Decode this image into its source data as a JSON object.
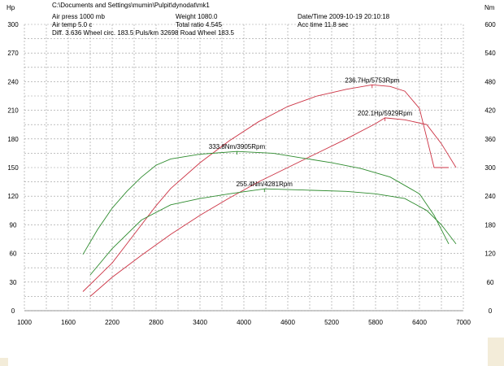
{
  "header": {
    "path": "C:\\Documents and Settings\\mumin\\Pulpit\\dynodat\\mk1",
    "air_press": "Air press  1000 mb",
    "air_temp": "Air temp  5.0 c",
    "diff": "Diff.   3.636  Wheel circ. 183.5  Puls/km  32698  Road Wheel 183.5",
    "weight": "Weight  1080.0",
    "total_ratio": "Total ratio 4.545",
    "date_time": "Date/Time  2009-10-19 20:10:18",
    "acc_time": "Acc time  11.8 sec"
  },
  "chart_data": {
    "type": "line",
    "xlabel": "",
    "left_axis_label": "Hp",
    "right_axis_label": "Nm",
    "xlim": [
      1000,
      7000
    ],
    "ylim_left": [
      0,
      300
    ],
    "ylim_right": [
      0,
      600
    ],
    "x_ticks": [
      "1000",
      "1600",
      "2200",
      "2800",
      "3400",
      "4000",
      "4600",
      "5200",
      "5800",
      "6400",
      "7000"
    ],
    "y_ticks_left": [
      "0",
      "30",
      "60",
      "90",
      "120",
      "150",
      "180",
      "210",
      "240",
      "270",
      "300"
    ],
    "y_ticks_right": [
      "0",
      "60",
      "120",
      "180",
      "240",
      "300",
      "360",
      "420",
      "480",
      "540",
      "600"
    ],
    "grid": true,
    "colors": {
      "power": "#cc3344",
      "torque": "#2e8b2e"
    },
    "series": [
      {
        "label": "236.7Hp/5753Rpm",
        "kind": "power",
        "axis": "left",
        "x": [
          1800,
          2000,
          2200,
          2400,
          2600,
          2800,
          3000,
          3400,
          3800,
          4200,
          4600,
          5000,
          5400,
          5753,
          6000,
          6200,
          6400,
          6600,
          6800
        ],
        "y": [
          20,
          35,
          50,
          70,
          90,
          110,
          128,
          155,
          178,
          198,
          214,
          225,
          232,
          236.7,
          235,
          230,
          212,
          150,
          150
        ],
        "peak_x": 5753,
        "peak_y": 236.7
      },
      {
        "label": "202.1Hp/5929Rpm",
        "kind": "power",
        "axis": "left",
        "x": [
          1900,
          2200,
          2600,
          3000,
          3400,
          3800,
          4200,
          4600,
          5000,
          5400,
          5800,
          5929,
          6200,
          6500,
          6700,
          6900
        ],
        "y": [
          15,
          35,
          58,
          80,
          100,
          118,
          135,
          150,
          165,
          180,
          196,
          202.1,
          200,
          195,
          175,
          150
        ],
        "peak_x": 5929,
        "peak_y": 202.1
      },
      {
        "label": "333.8Nm/3905Rpm",
        "kind": "torque",
        "axis": "right",
        "x": [
          1800,
          2000,
          2200,
          2400,
          2600,
          2800,
          3000,
          3400,
          3905,
          4400,
          4800,
          5200,
          5600,
          6000,
          6400,
          6600,
          6800
        ],
        "y": [
          118,
          170,
          215,
          250,
          280,
          305,
          318,
          328,
          333.8,
          330,
          320,
          310,
          298,
          280,
          245,
          200,
          140
        ],
        "peak_x": 3905,
        "peak_y": 333.8
      },
      {
        "label": "255.4Nm/4281Rpm",
        "kind": "torque",
        "axis": "right",
        "x": [
          1900,
          2200,
          2600,
          3000,
          3400,
          3800,
          4281,
          4800,
          5400,
          5800,
          6200,
          6500,
          6700,
          6900
        ],
        "y": [
          75,
          130,
          190,
          222,
          235,
          245,
          255.4,
          253,
          250,
          245,
          235,
          210,
          180,
          140
        ],
        "peak_x": 4281,
        "peak_y": 255.4
      }
    ]
  }
}
